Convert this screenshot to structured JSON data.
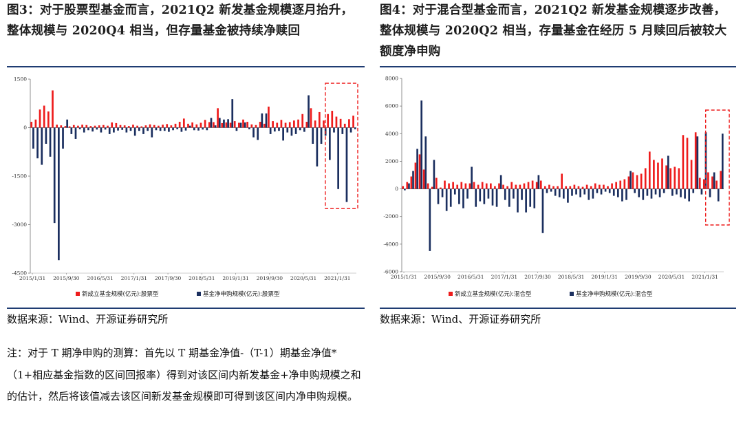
{
  "colors": {
    "new_fund": "#ee1c1c",
    "net_flow": "#1b2f5f",
    "rule": "#1f3c72",
    "highlight": "#ee1c1c"
  },
  "left": {
    "title": "图3：对于股票型基金而言，2021Q2 新发基金规模逐月抬升，整体规模与 2020Q4 相当，但存量基金被持续净赎回",
    "source": "数据来源：Wind、开源证券研究所"
  },
  "right": {
    "title": "图4：对于混合型基金而言，2021Q2 新发基金规模逐步改善，整体规模与 2020Q2 相当，存量基金在经历 5 月赎回后被较大额度净申购",
    "source": "数据来源：Wind、开源证券研究所"
  },
  "note": "注：对于 T 期净申购的测算：首先以 T 期基金净值-（T-1）期基金净值*（1+相应基金指数的区间回报率）得到对该区间内新发基金+净申购规模之和的估计，然后将该值减去该区间新发基金规模即可得到该区间内净申购规模。",
  "chart_data": [
    {
      "type": "bar",
      "title": "",
      "ylim": [
        -4500,
        1500
      ],
      "yticks": [
        1500,
        0,
        -1500,
        -3000,
        -4500
      ],
      "xtick_labels": [
        "2015/1/31",
        "2015/9/30",
        "2016/5/31",
        "2017/1/31",
        "2017/9/30",
        "2018/5/31",
        "2019/1/31",
        "2019/9/30",
        "2020/5/31",
        "2021/1/31"
      ],
      "xtick_index": [
        0,
        8,
        16,
        24,
        32,
        40,
        48,
        56,
        64,
        72
      ],
      "highlight_range": [
        70,
        76
      ],
      "series": [
        {
          "name": "新成立基金规模(亿元):股票型",
          "values": [
            180,
            250,
            560,
            680,
            500,
            1150,
            90,
            70,
            50,
            40,
            80,
            60,
            90,
            80,
            50,
            60,
            70,
            80,
            60,
            160,
            140,
            80,
            70,
            50,
            90,
            60,
            40,
            70,
            100,
            80,
            60,
            90,
            110,
            70,
            120,
            180,
            280,
            120,
            160,
            100,
            150,
            240,
            170,
            170,
            600,
            140,
            160,
            150,
            200,
            150,
            250,
            180,
            100,
            80,
            180,
            120,
            650,
            200,
            150,
            240,
            150,
            170,
            220,
            250,
            420,
            180,
            600,
            220,
            480,
            220,
            420,
            520,
            340,
            270,
            120,
            260,
            370
          ]
        },
        {
          "name": "基金净申购规模(亿元):股票型",
          "values": [
            -650,
            -950,
            -1150,
            -500,
            -900,
            -2950,
            -4100,
            -650,
            250,
            -200,
            -350,
            -50,
            -150,
            -80,
            -120,
            -60,
            -150,
            -60,
            -200,
            -150,
            -90,
            -70,
            -150,
            -100,
            -250,
            -100,
            -200,
            -100,
            -300,
            -80,
            -100,
            -100,
            -130,
            -80,
            -50,
            -130,
            -90,
            60,
            -80,
            -90,
            -60,
            -80,
            300,
            70,
            300,
            250,
            260,
            880,
            -100,
            150,
            160,
            -50,
            -300,
            -380,
            440,
            440,
            -200,
            -120,
            -100,
            -400,
            -150,
            -250,
            -200,
            -80,
            -130,
            1000,
            -500,
            -1200,
            -500,
            -250,
            -1000,
            -150,
            -1900,
            -200,
            -2300,
            -150,
            -50
          ]
        }
      ]
    },
    {
      "type": "bar",
      "title": "",
      "ylim": [
        -6000,
        8000
      ],
      "yticks": [
        8000,
        6000,
        4000,
        2000,
        0,
        -2000,
        -4000,
        -6000
      ],
      "xtick_labels": [
        "2015/1/31",
        "2015/9/30",
        "2016/5/31",
        "2017/1/31",
        "2017/9/30",
        "2018/5/31",
        "2019/1/31",
        "2019/9/30",
        "2020/5/31",
        "2021/1/31"
      ],
      "xtick_index": [
        0,
        8,
        16,
        24,
        32,
        40,
        48,
        56,
        64,
        72
      ],
      "highlight_range": [
        73,
        77
      ],
      "series": [
        {
          "name": "新成立基金规模(亿元):混合型",
          "values": [
            200,
            500,
            900,
            1900,
            2500,
            1400,
            400,
            150,
            800,
            100,
            600,
            400,
            500,
            300,
            500,
            400,
            400,
            500,
            300,
            500,
            400,
            400,
            200,
            400,
            300,
            200,
            500,
            300,
            300,
            400,
            500,
            600,
            500,
            600,
            200,
            300,
            200,
            200,
            1100,
            200,
            200,
            300,
            200,
            150,
            300,
            200,
            400,
            300,
            300,
            200,
            400,
            500,
            600,
            700,
            900,
            1200,
            1000,
            1100,
            1500,
            2700,
            2100,
            1900,
            2200,
            1700,
            1500,
            1600,
            1500,
            3900,
            3700,
            2100,
            4100,
            800,
            700,
            1200,
            900,
            600,
            1300
          ]
        },
        {
          "name": "基金净申购规模(亿元):混合型",
          "values": [
            -100,
            400,
            1300,
            2900,
            6400,
            3800,
            -4500,
            2100,
            -1100,
            -600,
            -1600,
            -1300,
            -400,
            -1100,
            -1400,
            -700,
            1600,
            -1300,
            -900,
            -1100,
            -700,
            -1200,
            -1300,
            1000,
            -800,
            -1300,
            -700,
            -1700,
            -800,
            -1700,
            -1300,
            -1400,
            1000,
            -3200,
            -300,
            -200,
            -500,
            -600,
            -700,
            -1000,
            -500,
            -400,
            -600,
            -400,
            -800,
            -700,
            -300,
            -400,
            -200,
            -300,
            -500,
            -600,
            -900,
            -800,
            1300,
            -300,
            -600,
            -800,
            -500,
            -700,
            -400,
            -600,
            -300,
            2400,
            -500,
            -400,
            -600,
            -700,
            -900,
            -300,
            3800,
            -400,
            4100,
            -600,
            1200,
            -900,
            4000
          ]
        }
      ]
    }
  ]
}
